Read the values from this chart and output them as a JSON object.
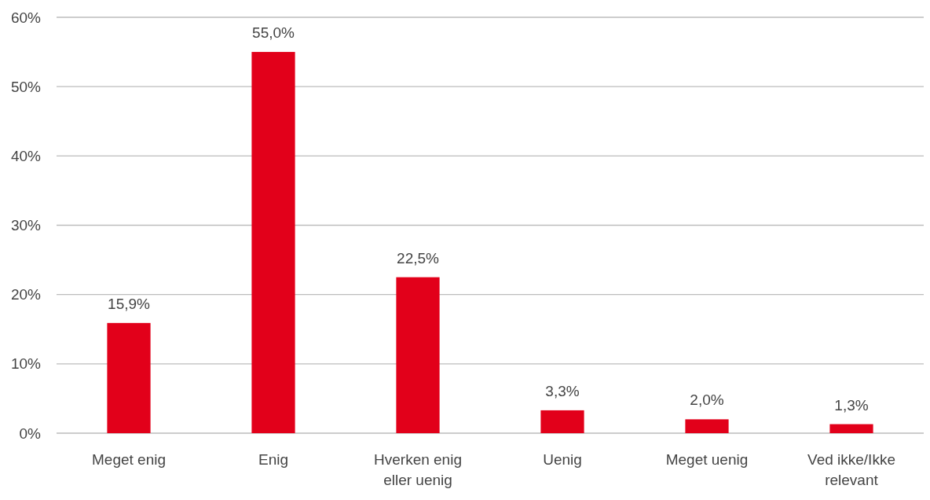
{
  "chart_data": {
    "type": "bar",
    "categories": [
      "Meget enig",
      "Enig",
      "Hverken enig eller uenig",
      "Uenig",
      "Meget uenig",
      "Ved ikke/Ikke relevant"
    ],
    "values": [
      15.9,
      55.0,
      22.5,
      3.3,
      2.0,
      1.3
    ],
    "value_labels": [
      "15,9%",
      "55,0%",
      "22,5%",
      "3,3%",
      "2,0%",
      "1,3%"
    ],
    "color": "#e2001a",
    "ylim": [
      0,
      60
    ],
    "yticks": [
      {
        "value": 0,
        "label": "0%"
      },
      {
        "value": 10,
        "label": "10%"
      },
      {
        "value": 20,
        "label": "20%"
      },
      {
        "value": 30,
        "label": "30%"
      },
      {
        "value": 40,
        "label": "40%"
      },
      {
        "value": 50,
        "label": "50%"
      },
      {
        "value": 60,
        "label": "60%"
      }
    ],
    "grid": "y"
  }
}
